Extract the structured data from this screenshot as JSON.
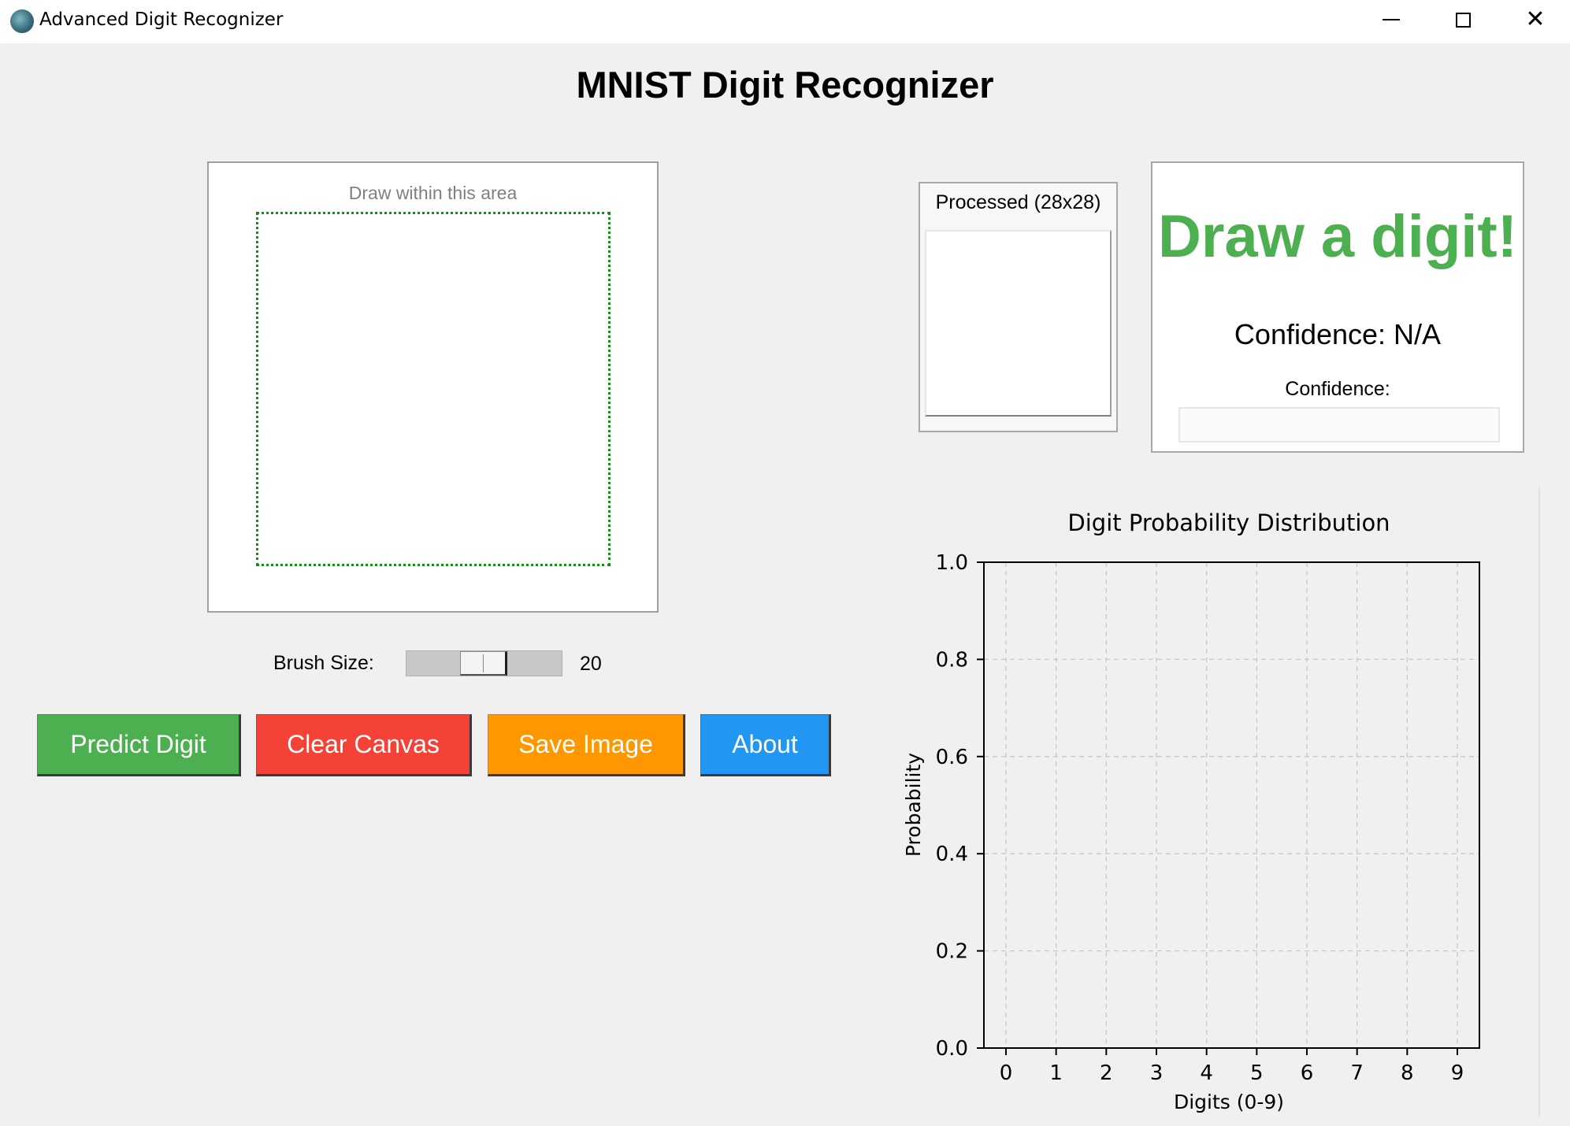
{
  "window": {
    "title": "Advanced Digit Recognizer",
    "minimize_icon": "minimize-icon",
    "maximize_icon": "maximize-icon",
    "close_icon": "close-icon",
    "close_glyph": "✕"
  },
  "heading": "MNIST Digit Recognizer",
  "canvas": {
    "hint": "Draw within this area",
    "guide_color": "#1a8a1a"
  },
  "brush": {
    "label": "Brush Size:",
    "value": "20"
  },
  "buttons": {
    "predict": "Predict Digit",
    "clear": "Clear Canvas",
    "save": "Save Image",
    "about": "About"
  },
  "colors": {
    "predict": "#4caf50",
    "clear": "#f44336",
    "save": "#ff9800",
    "about": "#2196f3",
    "result_text": "#4caf50"
  },
  "processed": {
    "label": "Processed (28x28)"
  },
  "result": {
    "prediction": "Draw a digit!",
    "confidence_text": "Confidence: N/A",
    "confidence_label": "Confidence:",
    "confidence_fraction": 0
  },
  "chart_data": {
    "type": "bar",
    "title": "Digit Probability Distribution",
    "xlabel": "Digits (0-9)",
    "ylabel": "Probability",
    "categories": [
      "0",
      "1",
      "2",
      "3",
      "4",
      "5",
      "6",
      "7",
      "8",
      "9"
    ],
    "values": [
      0,
      0,
      0,
      0,
      0,
      0,
      0,
      0,
      0,
      0
    ],
    "ylim": [
      0,
      1.0
    ],
    "yticks": [
      "0.0",
      "0.2",
      "0.4",
      "0.6",
      "0.8",
      "1.0"
    ],
    "grid": true,
    "grid_style": "dashed"
  }
}
